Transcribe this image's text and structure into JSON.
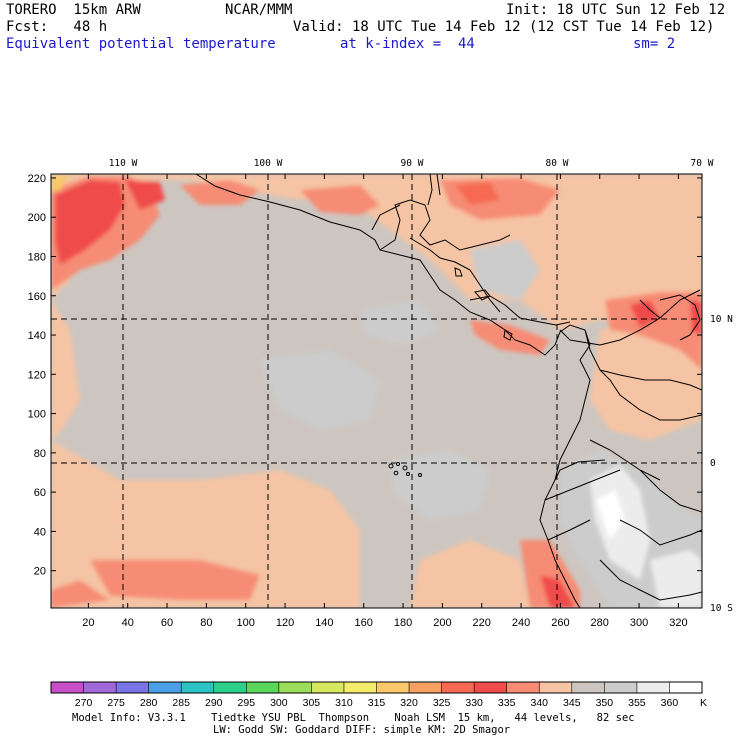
{
  "header": {
    "model": "TORERO  15km ARW",
    "org": "NCAR/MMM",
    "init": "Init: 18 UTC Sun 12 Feb 12",
    "fcst": "Fcst:   48 h",
    "valid": "Valid: 18 UTC Tue 14 Feb 12 (12 CST Tue 14 Feb 12)",
    "field": "Equivalent potential temperature",
    "level": "at k-index =  44",
    "smooth": "sm= 2"
  },
  "map": {
    "lon_labels": [
      "110 W",
      "100 W",
      "90 W",
      "80 W",
      "70 W"
    ],
    "lat_labels": [
      "10 N",
      "0",
      "10 S"
    ],
    "x_ticks": [
      "20",
      "40",
      "60",
      "80",
      "100",
      "120",
      "140",
      "160",
      "180",
      "200",
      "220",
      "240",
      "260",
      "280",
      "300",
      "320"
    ],
    "y_ticks": [
      "20",
      "40",
      "60",
      "80",
      "100",
      "120",
      "140",
      "160",
      "180",
      "200",
      "220"
    ]
  },
  "colorbar": {
    "levels": [
      "270",
      "275",
      "280",
      "285",
      "290",
      "295",
      "300",
      "305",
      "310",
      "315",
      "320",
      "325",
      "330",
      "335",
      "340",
      "345",
      "350",
      "355",
      "360"
    ],
    "unit": "K",
    "colors": [
      "#c94ec9",
      "#a068d8",
      "#7a74e8",
      "#4aa0e6",
      "#2cc4c4",
      "#2cd08a",
      "#5ad65a",
      "#9ade5a",
      "#d4e860",
      "#f2ec6a",
      "#f8c86a",
      "#f6a064",
      "#f66a52",
      "#f04c4c",
      "#f68c74",
      "#f4c4a4",
      "#cdc6c0",
      "#cccccc",
      "#ececec",
      "#ffffff"
    ]
  },
  "footer": {
    "line1": "Model Info: V3.3.1    Tiedtke YSU PBL  Thompson    Noah LSM  15 km,   44 levels,   82 sec",
    "line2": "LW: Godd SW: Goddard DIFF: simple KM: 2D Smagor"
  }
}
